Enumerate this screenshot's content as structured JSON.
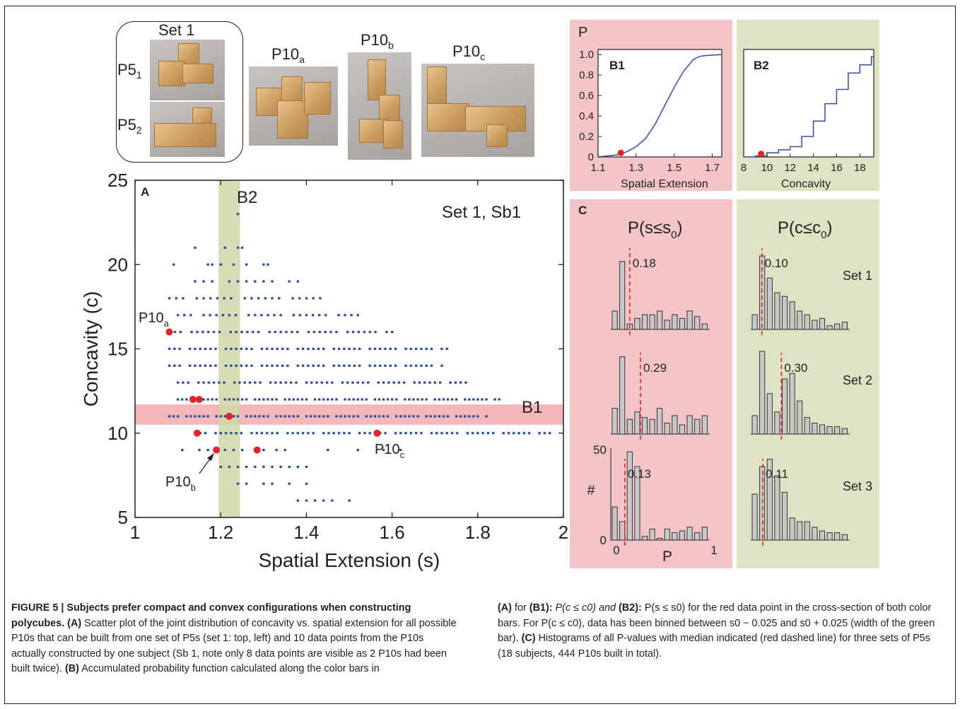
{
  "figure": {
    "photos": {
      "set_label": "Set 1",
      "p5_1": "P5",
      "p5_1_sub": "1",
      "p5_2": "P5",
      "p5_2_sub": "2",
      "p10a": "P10",
      "p10a_sub": "a",
      "p10b": "P10",
      "p10b_sub": "b",
      "p10c": "P10",
      "p10c_sub": "c"
    },
    "panelA": {
      "letter": "A",
      "set_label": "Set 1, Sb1",
      "b1_label": "B1",
      "b2_label": "B2",
      "annotations": [
        {
          "text": "P10",
          "sub": "a"
        },
        {
          "text": "P10",
          "sub": "b"
        },
        {
          "text": "P10",
          "sub": "c"
        }
      ]
    },
    "panelB1": {
      "letter": "B1",
      "p_label": "P"
    },
    "panelB2": {
      "letter": "B2"
    },
    "panelC": {
      "letter": "C",
      "col_s_title": "P(s≤s",
      "col_s_sub": "0",
      "col_c_title": "P(c≤c",
      "col_c_sub": "0",
      "hash": "#",
      "x_label": "P",
      "y_max": "50",
      "y_min": "0",
      "x_min": "0",
      "x_max": "1",
      "set_labels": [
        "Set 1",
        "Set 2",
        "Set 3"
      ]
    }
  },
  "chart_data": [
    {
      "type": "scatter",
      "title": "Set 1, Sb1",
      "xlabel": "Spatial Extension (s)",
      "ylabel": "Concavity  (c)",
      "xlim": [
        1,
        2
      ],
      "ylim": [
        5,
        25
      ],
      "x_ticks": [
        "1",
        "1.2",
        "1.4",
        "1.6",
        "1.8",
        "2"
      ],
      "y_ticks": [
        "5",
        "10",
        "15",
        "20",
        "25"
      ],
      "highlight_bands": [
        {
          "name": "B1",
          "axis": "y",
          "range": [
            10.5,
            11.7
          ],
          "color": "#f4b6b8"
        },
        {
          "name": "B2",
          "axis": "x",
          "range": [
            1.195,
            1.245
          ],
          "color": "#cfd6a6"
        }
      ],
      "background_rows": [
        {
          "c": 6,
          "points": [
            1.38,
            1.4,
            1.42,
            1.44,
            1.46,
            1.5
          ]
        },
        {
          "c": 7,
          "points": [
            1.24,
            1.26,
            1.3,
            1.32,
            1.36,
            1.4
          ]
        },
        {
          "c": 8,
          "points": [
            1.2,
            1.22,
            1.24,
            1.26,
            1.28,
            1.3,
            1.32,
            1.34,
            1.36,
            1.38,
            1.4
          ]
        },
        {
          "c": 9,
          "points": [
            1.11,
            1.15,
            1.17,
            1.19,
            1.21,
            1.23,
            1.25,
            1.3,
            1.33,
            1.35,
            1.45,
            1.52,
            1.58,
            1.62
          ]
        },
        {
          "c": 10,
          "range": [
            1.14,
            1.97
          ],
          "step": 0.012
        },
        {
          "c": 11,
          "range": [
            1.08,
            1.82
          ],
          "step": 0.01
        },
        {
          "c": 12,
          "range": [
            1.1,
            1.85
          ],
          "step": 0.01
        },
        {
          "c": 13,
          "range": [
            1.1,
            1.78
          ],
          "step": 0.012
        },
        {
          "c": 14,
          "range": [
            1.08,
            1.72
          ],
          "step": 0.012
        },
        {
          "c": 15,
          "range": [
            1.08,
            1.73
          ],
          "step": 0.012
        },
        {
          "c": 16,
          "range": [
            1.08,
            1.6
          ],
          "step": 0.013
        },
        {
          "c": 17,
          "range": [
            1.1,
            1.52
          ],
          "step": 0.015
        },
        {
          "c": 18,
          "range": [
            1.08,
            1.44
          ],
          "step": 0.016
        },
        {
          "c": 19,
          "range": [
            1.14,
            1.38
          ],
          "step": 0.02
        },
        {
          "c": 20,
          "points": [
            1.09,
            1.17,
            1.18,
            1.2,
            1.23,
            1.26,
            1.3,
            1.31
          ]
        },
        {
          "c": 21,
          "points": [
            1.14,
            1.21,
            1.24,
            1.25
          ]
        },
        {
          "c": 23,
          "points": [
            1.24
          ]
        }
      ],
      "subject_points": [
        {
          "name": "P10a",
          "s": 1.08,
          "c": 16
        },
        {
          "name": "",
          "s": 1.135,
          "c": 12
        },
        {
          "name": "",
          "s": 1.15,
          "c": 12
        },
        {
          "name": "",
          "s": 1.145,
          "c": 10
        },
        {
          "name": "",
          "s": 1.22,
          "c": 11
        },
        {
          "name": "P10b",
          "s": 1.19,
          "c": 9
        },
        {
          "name": "",
          "s": 1.285,
          "c": 9
        },
        {
          "name": "P10c",
          "s": 1.565,
          "c": 10
        }
      ]
    },
    {
      "type": "line",
      "title": "B1",
      "xlabel": "Spatial Extension",
      "ylabel": "P",
      "xlim": [
        1.1,
        1.75
      ],
      "ylim": [
        0,
        1.05
      ],
      "x_ticks": [
        "1.1",
        "1.3",
        "1.5",
        "1.7"
      ],
      "y_ticks": [
        "0",
        "0.2",
        "0.4",
        "0.6",
        "0.8",
        "1.0"
      ],
      "x": [
        1.1,
        1.15,
        1.2,
        1.25,
        1.3,
        1.35,
        1.4,
        1.45,
        1.5,
        1.55,
        1.6,
        1.63,
        1.66,
        1.7,
        1.75
      ],
      "y": [
        0,
        0.01,
        0.02,
        0.05,
        0.1,
        0.18,
        0.32,
        0.5,
        0.68,
        0.84,
        0.95,
        0.98,
        0.99,
        0.995,
        1.0
      ],
      "marker": {
        "x": 1.22,
        "y": 0.04
      }
    },
    {
      "type": "line",
      "title": "B2",
      "xlabel": "Concavity",
      "xlim": [
        8,
        19.2
      ],
      "ylim": [
        0,
        1.05
      ],
      "x_ticks": [
        "8",
        "10",
        "12",
        "14",
        "16",
        "18"
      ],
      "steps": [
        [
          8,
          0
        ],
        [
          9,
          0.01
        ],
        [
          10,
          0.04
        ],
        [
          11,
          0.07
        ],
        [
          12,
          0.1
        ],
        [
          13,
          0.2
        ],
        [
          14,
          0.35
        ],
        [
          15,
          0.52
        ],
        [
          16,
          0.66
        ],
        [
          17,
          0.82
        ],
        [
          18,
          0.9
        ],
        [
          19,
          0.98
        ]
      ],
      "marker": {
        "x": 9.5,
        "y": 0.03
      }
    },
    {
      "type": "bar",
      "title": "P(s≤s0)",
      "xlabel": "P",
      "ylabel": "#",
      "ylim": [
        0,
        50
      ],
      "series": [
        {
          "name": "Set 1",
          "median": 0.18,
          "values": [
            10,
            37,
            3,
            6,
            8,
            8,
            10,
            5,
            8,
            6,
            10,
            7,
            3
          ]
        },
        {
          "name": "Set 2",
          "median": 0.29,
          "values": [
            14,
            42,
            8,
            12,
            9,
            8,
            14,
            6,
            10,
            5,
            10,
            8,
            10
          ]
        },
        {
          "name": "Set 3",
          "median": 0.13,
          "values": [
            18,
            10,
            48,
            40,
            2,
            6,
            1,
            6,
            4,
            5,
            7,
            4,
            7
          ]
        }
      ]
    },
    {
      "type": "bar",
      "title": "P(c≤c0)",
      "xlabel": "P",
      "ylim": [
        0,
        50
      ],
      "series": [
        {
          "name": "Set 1",
          "median": 0.1,
          "values": [
            8,
            40,
            28,
            20,
            18,
            15,
            10,
            8,
            5,
            6,
            2,
            3,
            4
          ]
        },
        {
          "name": "Set 2",
          "median": 0.3,
          "values": [
            10,
            45,
            22,
            12,
            30,
            33,
            18,
            9,
            6,
            5,
            4,
            4,
            3
          ]
        },
        {
          "name": "Set 3",
          "median": 0.11,
          "values": [
            25,
            40,
            44,
            35,
            26,
            12,
            10,
            10,
            7,
            5,
            4,
            4,
            3
          ]
        }
      ]
    }
  ],
  "caption": {
    "heading": "FIGURE 5 | Subjects prefer compact and convex configurations when constructing polycubes.",
    "text_a_label": "(A)",
    "text_a": "Scatter plot of the joint distribution of concavity vs. spatial extension for all possible P10s that can be built from one set of P5s (set 1: top, left) and 10 data points from the P10s actually constructed by one subject (Sb 1, note only 8 data points are visible as 2 P10s had been built twice).",
    "text_b_label": "(B)",
    "text_b": "Accumulated probability function calculated along the color bars in",
    "text_b_ref_a": "(A)",
    "text_b_for": "for",
    "text_b1_label": "(B1):",
    "text_b1": "P(c ≤ c0) and",
    "text_b2_label": "(B2):",
    "text_b2": "P(s ≤ s0) for the red data point in the cross-section of both color bars. For P(c ≤ c0), data has been binned between s0 − 0.025 and s0 + 0.025 (width of the green bar).",
    "text_c_label": "(C)",
    "text_c": "Histograms of all P-values with median indicated (red dashed line) for three sets of P5s (18 subjects, 444 P10s built in total)."
  }
}
